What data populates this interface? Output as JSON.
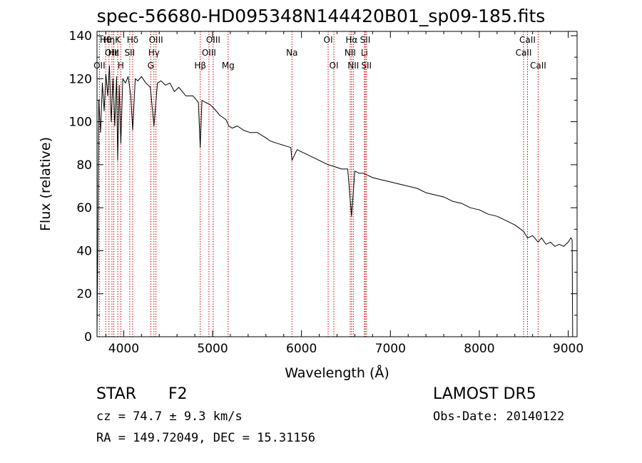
{
  "header": {
    "title": "spec-56680-HD095348N144420B01_sp09-185.fits"
  },
  "info": {
    "object_class": "STAR",
    "subclass": "F2",
    "survey": "LAMOST DR5",
    "cz": "cz = 74.7 ± 9.3 km/s",
    "obs_date": "Obs-Date: 20140122",
    "radec": "RA = 149.72049, DEC =  15.31156"
  },
  "chart_data": {
    "type": "line",
    "title": "spec-56680-HD095348N144420B01_sp09-185.fits",
    "xlabel": "Wavelength (Å)",
    "ylabel": "Flux (relative)",
    "xlim": [
      3700,
      9100
    ],
    "ylim": [
      0,
      142
    ],
    "xticks": [
      4000,
      5000,
      6000,
      7000,
      8000,
      9000
    ],
    "yticks": [
      0,
      20,
      40,
      60,
      80,
      100,
      120,
      140
    ],
    "grid": false,
    "line_color": "#000000",
    "marker_color": "#cc0000",
    "series": [
      {
        "x": [
          3700,
          3710,
          3720,
          3740,
          3760,
          3780,
          3800,
          3820,
          3840,
          3860,
          3880,
          3900,
          3920,
          3933,
          3950,
          3968,
          3990,
          4020,
          4050,
          4080,
          4101,
          4130,
          4160,
          4200,
          4250,
          4300,
          4340,
          4380,
          4420,
          4470,
          4520,
          4570,
          4620,
          4700,
          4780,
          4840,
          4861,
          4880,
          4920,
          4970,
          5020,
          5080,
          5150,
          5183,
          5220,
          5280,
          5350,
          5420,
          5500,
          5580,
          5650,
          5720,
          5800,
          5880,
          5893,
          5950,
          6050,
          6150,
          6250,
          6300,
          6380,
          6450,
          6520,
          6563,
          6600,
          6650,
          6700,
          6750,
          6800,
          6900,
          7000,
          7100,
          7200,
          7300,
          7400,
          7500,
          7600,
          7700,
          7800,
          7900,
          8000,
          8100,
          8200,
          8300,
          8400,
          8498,
          8542,
          8600,
          8662,
          8700,
          8750,
          8800,
          8850,
          8900,
          8950,
          9000,
          9030,
          9045,
          9050
        ],
        "y": [
          0,
          45,
          110,
          95,
          118,
          105,
          122,
          112,
          126,
          100,
          120,
          98,
          121,
          82,
          117,
          90,
          120,
          118,
          121,
          112,
          96,
          120,
          119,
          121,
          118,
          116,
          98,
          118,
          119,
          117,
          118,
          114,
          116,
          112,
          112,
          109,
          88,
          110,
          109,
          108,
          106,
          103,
          101,
          98,
          97,
          98,
          96,
          95,
          95,
          93,
          91,
          90,
          89,
          88,
          82,
          87,
          85,
          83,
          81,
          80,
          79,
          78,
          78,
          56,
          77,
          76,
          76,
          75,
          74,
          73,
          72,
          71,
          70,
          69,
          67,
          66,
          65,
          63,
          62,
          60,
          59,
          57,
          56,
          54,
          52,
          49,
          46,
          47,
          44,
          46,
          43,
          44,
          42,
          43,
          42,
          44,
          46,
          45,
          0
        ]
      }
    ],
    "line_markers": [
      {
        "label": "OII",
        "wavelength": 3727,
        "row": 3
      },
      {
        "label": "Hθ",
        "wavelength": 3797,
        "row": 1
      },
      {
        "label": "Hη",
        "wavelength": 3835,
        "row": 1
      },
      {
        "label": "OIII",
        "wavelength": 3868,
        "row": 2
      },
      {
        "label": "Hε",
        "wavelength": 3889,
        "row": 2
      },
      {
        "label": "K",
        "wavelength": 3933,
        "row": 1
      },
      {
        "label": "H",
        "wavelength": 3968,
        "row": 3
      },
      {
        "label": "SII",
        "wavelength": 4068,
        "row": 2
      },
      {
        "label": "Hδ",
        "wavelength": 4101,
        "row": 1
      },
      {
        "label": "G",
        "wavelength": 4305,
        "row": 3
      },
      {
        "label": "Hγ",
        "wavelength": 4340,
        "row": 2
      },
      {
        "label": "OIII",
        "wavelength": 4363,
        "row": 1
      },
      {
        "label": "Hβ",
        "wavelength": 4861,
        "row": 3
      },
      {
        "label": "OIII",
        "wavelength": 4959,
        "row": 2
      },
      {
        "label": "OIII",
        "wavelength": 5007,
        "row": 1
      },
      {
        "label": "Mg",
        "wavelength": 5175,
        "row": 3
      },
      {
        "label": "Na",
        "wavelength": 5893,
        "row": 2
      },
      {
        "label": "OI",
        "wavelength": 6300,
        "row": 1
      },
      {
        "label": "OI",
        "wavelength": 6364,
        "row": 3
      },
      {
        "label": "NII",
        "wavelength": 6548,
        "row": 2
      },
      {
        "label": "Hα",
        "wavelength": 6563,
        "row": 1
      },
      {
        "label": "NII",
        "wavelength": 6583,
        "row": 3
      },
      {
        "label": "Li",
        "wavelength": 6708,
        "row": 2
      },
      {
        "label": "SII",
        "wavelength": 6717,
        "row": 1
      },
      {
        "label": "SII",
        "wavelength": 6731,
        "row": 3
      },
      {
        "label": "CaII",
        "wavelength": 8498,
        "row": 2
      },
      {
        "label": "CaII",
        "wavelength": 8542,
        "row": 1
      },
      {
        "label": "CaII",
        "wavelength": 8662,
        "row": 3
      }
    ]
  }
}
